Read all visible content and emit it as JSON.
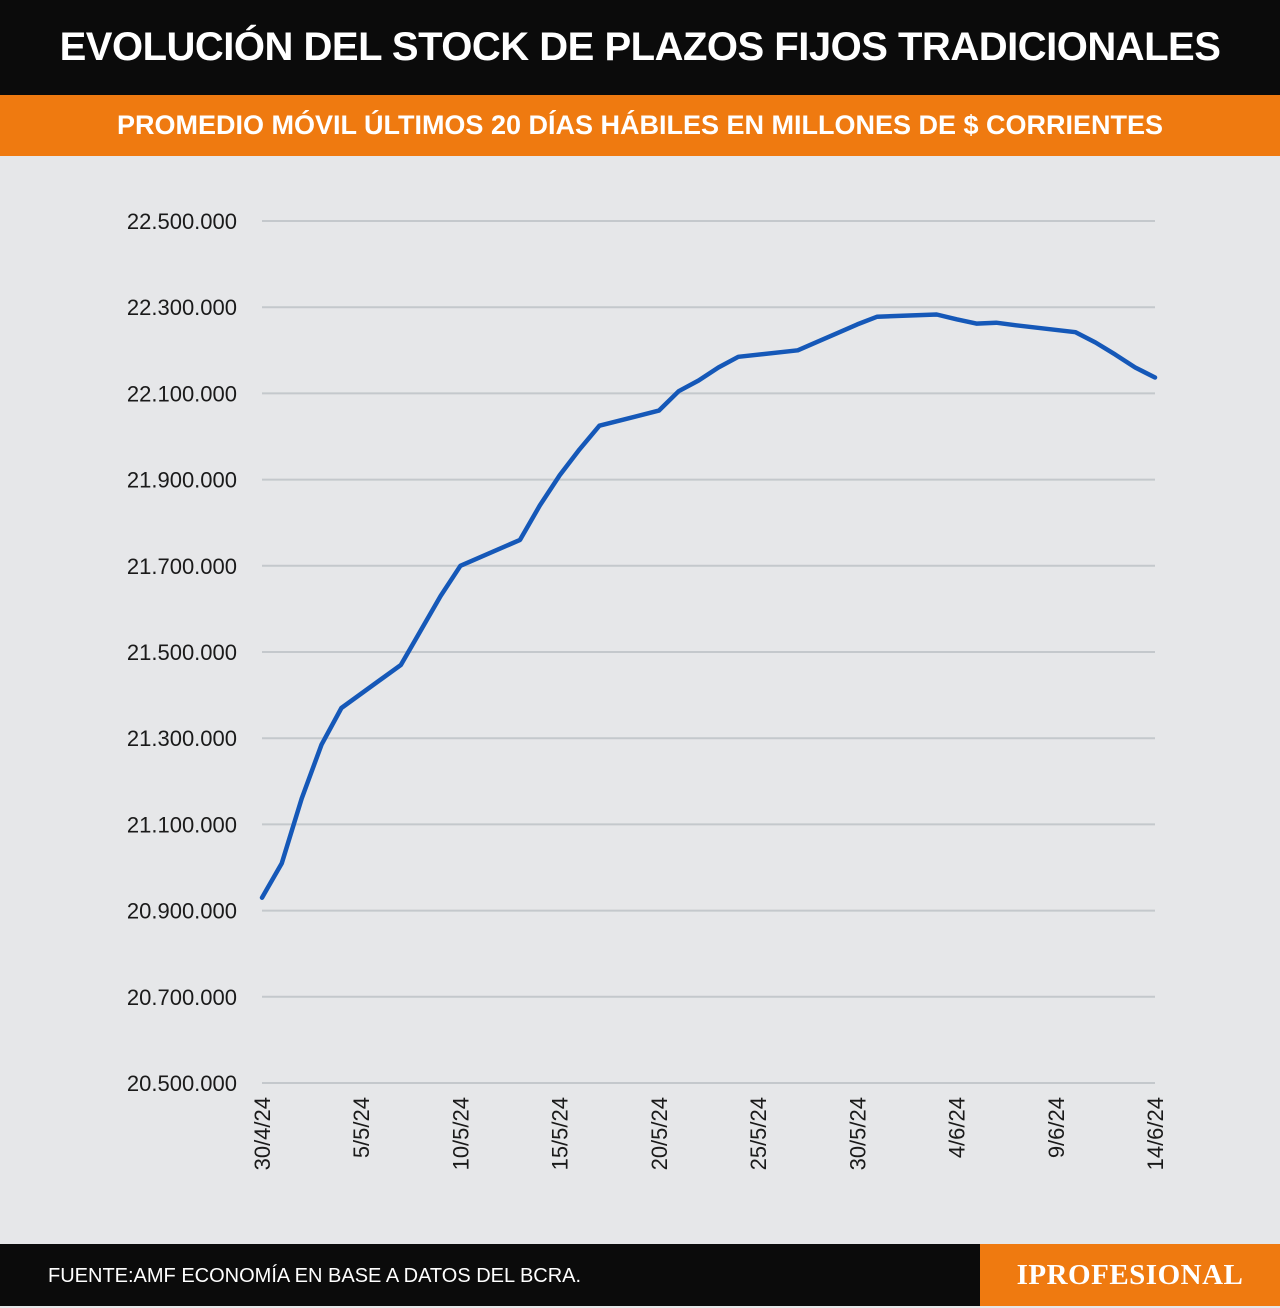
{
  "header": {
    "title": "EVOLUCIÓN DEL STOCK DE PLAZOS FIJOS TRADICIONALES",
    "subtitle": "PROMEDIO MÓVIL ÚLTIMOS 20 DÍAS HÁBILES EN MILLONES DE $ CORRIENTES"
  },
  "footer": {
    "source": "FUENTE:AMF ECONOMÍA EN BASE A DATOS DEL BCRA.",
    "brand": "IPROFESIONAL"
  },
  "colors": {
    "line": "#1558b8",
    "title_bg": "#0b0b0b",
    "accent": "#ef7a10",
    "plot_bg": "#e6e7e9",
    "grid": "#c4c8cc"
  },
  "chart_data": {
    "type": "line",
    "xlabel": "",
    "ylabel": "",
    "grid": true,
    "ylim": [
      20500000,
      22500000
    ],
    "yticks": [
      20500000,
      20700000,
      20900000,
      21100000,
      21300000,
      21500000,
      21700000,
      21900000,
      22100000,
      22300000,
      22500000
    ],
    "ytick_labels": [
      "20.500.000",
      "20.700.000",
      "20.900.000",
      "21.100.000",
      "21.300.000",
      "21.500.000",
      "21.700.000",
      "21.900.000",
      "22.100.000",
      "22.300.000",
      "22.500.000"
    ],
    "xlim": [
      "30/4/24",
      "14/6/24"
    ],
    "xticks": [
      "30/4/24",
      "5/5/24",
      "10/5/24",
      "15/5/24",
      "20/5/24",
      "25/5/24",
      "30/5/24",
      "4/6/24",
      "9/6/24",
      "14/6/24"
    ],
    "series": [
      {
        "x": [
          "30/4/24",
          "1/5/24",
          "2/5/24",
          "3/5/24",
          "4/5/24",
          "7/5/24",
          "8/5/24",
          "9/5/24",
          "10/5/24",
          "13/5/24",
          "14/5/24",
          "15/5/24",
          "16/5/24",
          "17/5/24",
          "20/5/24",
          "21/5/24",
          "22/5/24",
          "23/5/24",
          "24/5/24",
          "27/5/24",
          "28/5/24",
          "29/5/24",
          "30/5/24",
          "31/5/24",
          "3/6/24",
          "4/6/24",
          "5/6/24",
          "6/6/24",
          "7/6/24",
          "10/6/24",
          "11/6/24",
          "12/6/24",
          "13/6/24",
          "14/6/24"
        ],
        "values": [
          20930000,
          21010000,
          21160000,
          21285000,
          21370000,
          21470000,
          21550000,
          21630000,
          21700000,
          21760000,
          21840000,
          21910000,
          21970000,
          22025000,
          22060000,
          22105000,
          22130000,
          22160000,
          22185000,
          22200000,
          22220000,
          22240000,
          22260000,
          22278000,
          22283000,
          22272000,
          22262000,
          22264000,
          22258000,
          22242000,
          22218000,
          22190000,
          22160000,
          22137000
        ]
      }
    ]
  }
}
